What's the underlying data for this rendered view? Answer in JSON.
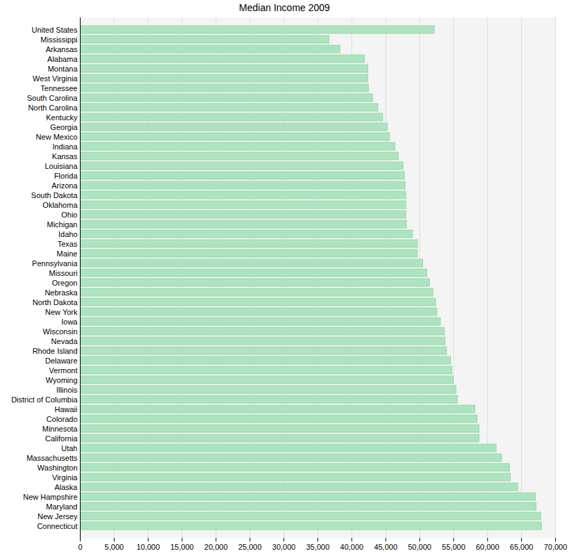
{
  "chart_data": {
    "type": "bar",
    "title": "Median Income 2009",
    "orientation": "horizontal",
    "categories": [
      "United States",
      "Mississippi",
      "Arkansas",
      "Alabama",
      "Montana",
      "West Virginia",
      "Tennessee",
      "South Carolina",
      "North Carolina",
      "Kentucky",
      "Georgia",
      "New Mexico",
      "Indiana",
      "Kansas",
      "Louisiana",
      "Florida",
      "Arizona",
      "South Dakota",
      "Oklahoma",
      "Ohio",
      "Michigan",
      "Idaho",
      "Texas",
      "Maine",
      "Pennsylvania",
      "Missouri",
      "Oregon",
      "Nebraska",
      "North Dakota",
      "New York",
      "Iowa",
      "Wisconsin",
      "Nevada",
      "Rhode Island",
      "Delaware",
      "Vermont",
      "Wyoming",
      "Illinois",
      "District of Columbia",
      "Hawaii",
      "Colorado",
      "Minnesota",
      "California",
      "Utah",
      "Massachusetts",
      "Washington",
      "Virginia",
      "Alaska",
      "New Hampshire",
      "Maryland",
      "New Jersey",
      "Connecticut"
    ],
    "values": [
      52200,
      36700,
      38300,
      41900,
      42400,
      42400,
      42500,
      43100,
      43900,
      44600,
      45300,
      45600,
      46400,
      46900,
      47600,
      47800,
      47900,
      48000,
      48000,
      48000,
      48100,
      49000,
      49700,
      49700,
      50500,
      51100,
      51500,
      52000,
      52400,
      52600,
      53100,
      53700,
      53800,
      54000,
      54600,
      54800,
      55000,
      55400,
      55600,
      58200,
      58500,
      58800,
      58800,
      61300,
      62100,
      63300,
      63400,
      64500,
      67100,
      67200,
      67900,
      68000
    ],
    "color": "#ade4bf",
    "xlim": [
      0,
      70000
    ],
    "xticks": [
      0,
      {
        "value": 5000,
        "label": "5,000"
      },
      {
        "value": 10000,
        "label": "10,000"
      },
      {
        "value": 15000,
        "label": "15,000"
      },
      {
        "value": 20000,
        "label": "20,000"
      },
      {
        "value": 25000,
        "label": "25,000"
      },
      {
        "value": 30000,
        "label": "30,000"
      },
      {
        "value": 35000,
        "label": "35,000"
      },
      {
        "value": 40000,
        "label": "40,000"
      },
      {
        "value": 45000,
        "label": "45,000"
      },
      {
        "value": 50000,
        "label": "50,000"
      },
      {
        "value": 55000,
        "label": "55,000"
      },
      {
        "value": 60000,
        "label": "60,000"
      },
      {
        "value": 65000,
        "label": "65,000"
      },
      {
        "value": 70000,
        "label": "70,000"
      }
    ],
    "grid": true
  }
}
